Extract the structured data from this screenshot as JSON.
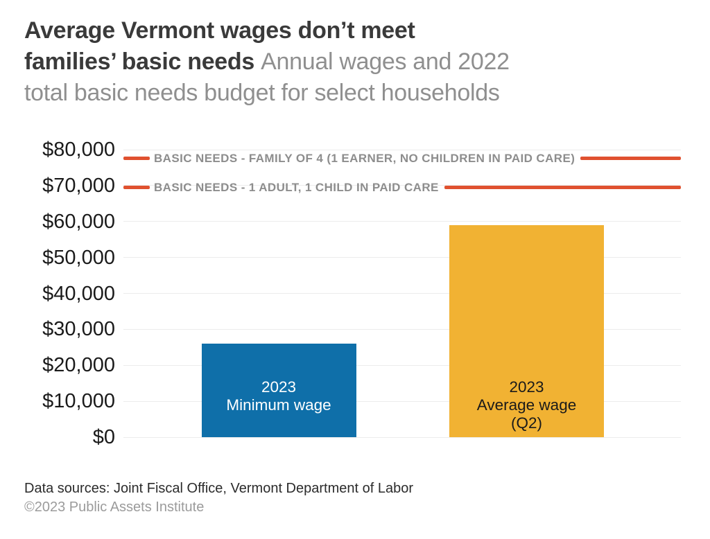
{
  "header": {
    "title_bold_line1": "Average Vermont wages don’t meet",
    "title_bold_line2": "families’ basic needs",
    "subtitle_line2": "Annual wages and 2022",
    "subtitle_line3": "total basic needs budget for select households"
  },
  "chart_data": {
    "type": "bar",
    "title": "Average Vermont wages don’t meet families’ basic needs",
    "subtitle": "Annual wages and 2022 total basic needs budget for select households",
    "categories": [
      "2023 Minimum wage",
      "2023 Average wage (Q2)"
    ],
    "values": [
      26000,
      59000
    ],
    "bars": [
      {
        "label_lines": [
          "2023",
          "Minimum wage"
        ],
        "value": 26000,
        "color": "#0f6fa9",
        "label_color": "#ffffff"
      },
      {
        "label_lines": [
          "2023",
          "Average wage",
          "(Q2)"
        ],
        "value": 59000,
        "color": "#f1b233",
        "label_color": "#1a1a1a"
      }
    ],
    "reference_lines": [
      {
        "label": "BASIC NEEDS - FAMILY OF 4 (1 EARNER, NO CHILDREN IN PAID CARE)",
        "value": 77500,
        "color": "#e0512f"
      },
      {
        "label": "BASIC NEEDS - 1 ADULT, 1 CHILD IN PAID CARE",
        "value": 69400,
        "color": "#e0512f"
      }
    ],
    "y_ticks": [
      "$80,000",
      "$70,000",
      "$60,000",
      "$50,000",
      "$40,000",
      "$30,000",
      "$20,000",
      "$10,000",
      "$0"
    ],
    "ylim": [
      0,
      80000
    ],
    "xlabel": "",
    "ylabel": "",
    "grid": true,
    "gridline_color": "#ececec",
    "legend_position": "none"
  },
  "footer": {
    "sources": "Data sources: Joint Fiscal Office, Vermont Department of Labor",
    "copyright": "©2023 Public Assets Institute"
  }
}
